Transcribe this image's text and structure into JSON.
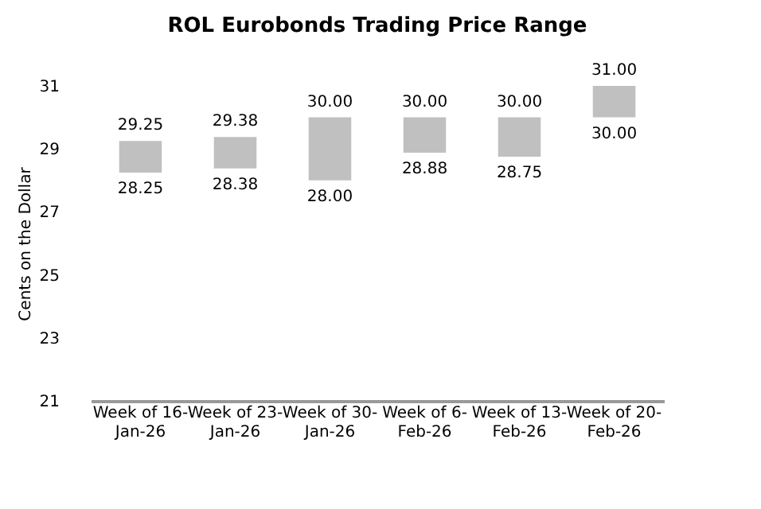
{
  "chart_data": {
    "type": "bar",
    "title": "ROL Eurobonds Trading Price Range",
    "ylabel": "Cents on the Dollar",
    "categories": [
      "Week of 16-Jan-26",
      "Week of 23-Jan-26",
      "Week of 30-Jan-26",
      "Week of 6-Feb-26",
      "Week of 13-Feb-26",
      "Week of 20-Feb-26"
    ],
    "base": [
      28.25,
      28.38,
      28.0,
      28.88,
      28.75,
      30.0
    ],
    "values": [
      1.0,
      1.0,
      2.0,
      1.12,
      1.25,
      1.0
    ],
    "color": "#c0c0c0",
    "ylim": [
      21,
      31
    ],
    "yticks": [
      21,
      23,
      25,
      27,
      29,
      31
    ],
    "grid": false,
    "annotations": [
      {
        "text": "29.25",
        "x": "Week of 16-Jan-26",
        "y": 29.25
      },
      {
        "text": "28.25",
        "x": "Week of 16-Jan-26",
        "y": 28.25
      },
      {
        "text": "29.38",
        "x": "Week of 23-Jan-26",
        "y": 29.38
      },
      {
        "text": "28.38",
        "x": "Week of 23-Jan-26",
        "y": 28.38
      },
      {
        "text": "30.00",
        "x": "Week of 30-Jan-26",
        "y": 30.0
      },
      {
        "text": "28.00",
        "x": "Week of 30-Jan-26",
        "y": 28.0
      },
      {
        "text": "30.00",
        "x": "Week of 6-Feb-26",
        "y": 30.0
      },
      {
        "text": "28.88",
        "x": "Week of 6-Feb-26",
        "y": 28.88
      },
      {
        "text": "30.00",
        "x": "Week of 13-Feb-26",
        "y": 30.0
      },
      {
        "text": "28.75",
        "x": "Week of 13-Feb-26",
        "y": 28.75
      },
      {
        "text": "31.00",
        "x": "Week of 20-Feb-26",
        "y": 31.0
      },
      {
        "text": "30.00",
        "x": "Week of 20-Feb-26",
        "y": 30.0
      }
    ]
  }
}
